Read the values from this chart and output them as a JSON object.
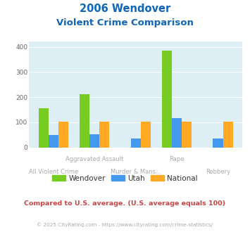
{
  "title_line1": "2006 Wendover",
  "title_line2": "Violent Crime Comparison",
  "categories": [
    "All Violent Crime",
    "Aggravated Assault",
    "Murder & Mans...",
    "Rape",
    "Robbery"
  ],
  "wendover": [
    155,
    210,
    0,
    385,
    0
  ],
  "utah": [
    50,
    53,
    36,
    115,
    36
  ],
  "national": [
    103,
    103,
    103,
    103,
    103
  ],
  "wendover_color": "#77cc22",
  "utah_color": "#4499ee",
  "national_color": "#ffaa22",
  "bg_color": "#ddeef5",
  "title_color": "#1166bb",
  "label_color": "#aaaaaa",
  "ylim": [
    0,
    420
  ],
  "yticks": [
    0,
    100,
    200,
    300,
    400
  ],
  "footnote": "Compared to U.S. average. (U.S. average equals 100)",
  "copyright": "© 2025 CityRating.com - https://www.cityrating.com/crime-statistics/",
  "footnote_color": "#cc4444",
  "copyright_color": "#aaaaaa",
  "top_row_labels": {
    "1": "Aggravated Assault",
    "3": "Rape"
  },
  "bottom_row_labels": {
    "0": "All Violent Crime",
    "2": "Murder & Mans...",
    "4": "Robbery"
  }
}
